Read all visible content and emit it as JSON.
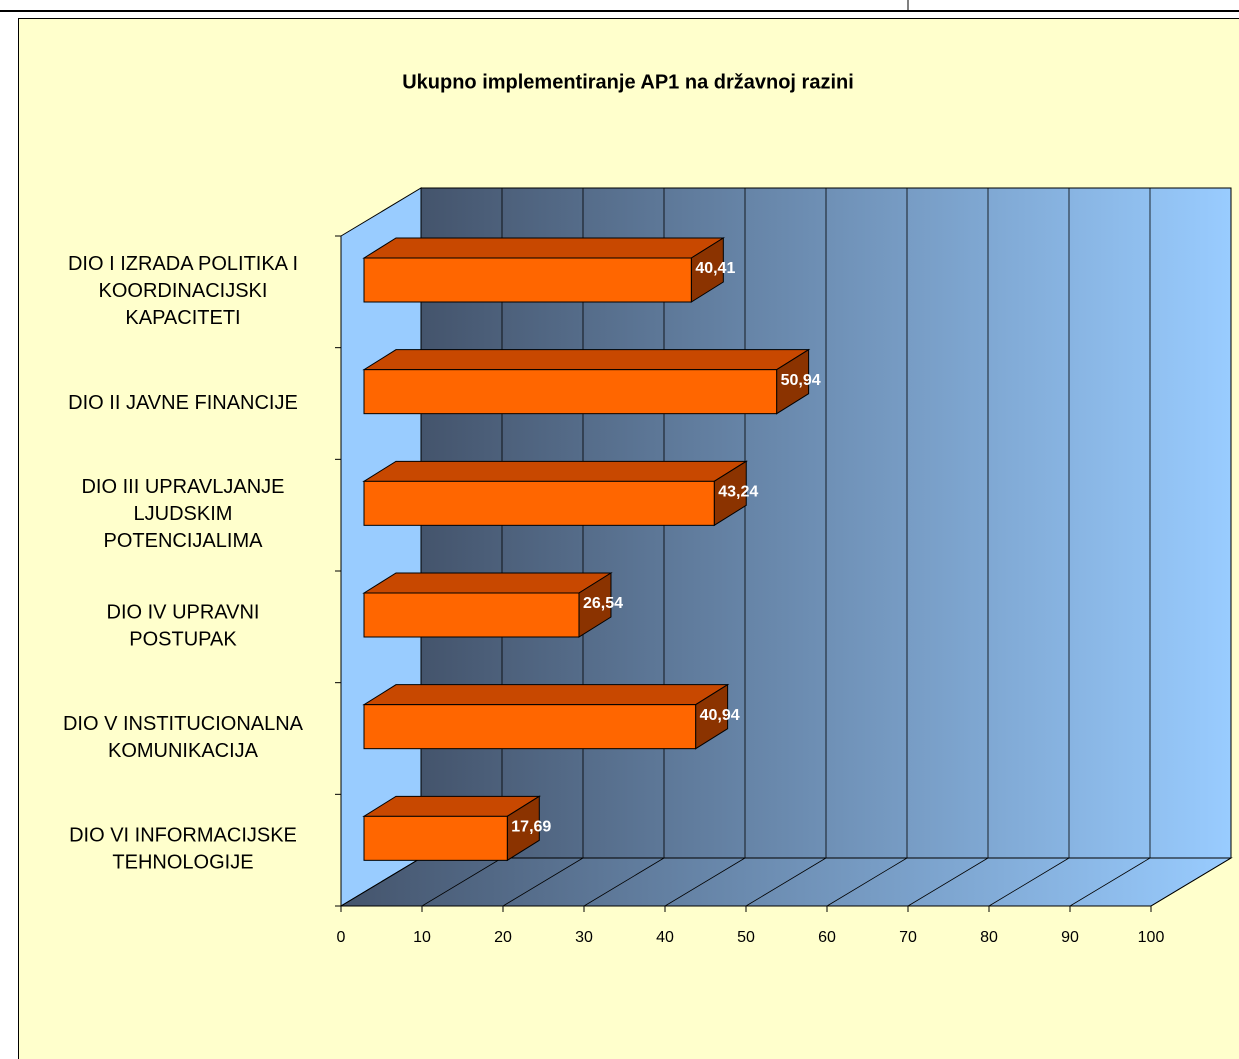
{
  "chart_data": {
    "type": "bar",
    "orientation": "horizontal",
    "title": "Ukupno implementiranje AP1 na državnoj razini",
    "categories": [
      "DIO I IZRADA POLITIKA I\nKOORDINACIJSKI\nKAPACITETI",
      "DIO II JAVNE FINANCIJE",
      "DIO III UPRAVLJANJE\nLJUDSKIM\nPOTENCIJALIMA",
      "DIO IV UPRAVNI\nPOSTUPAK",
      "DIO V INSTITUCIONALNA\nKOMUNIKACIJA",
      "DIO VI INFORMACIJSKE\nTEHNOLOGIJE"
    ],
    "values": [
      40.41,
      50.94,
      43.24,
      26.54,
      40.94,
      17.69
    ],
    "value_labels": [
      "40,41",
      "50,94",
      "43,24",
      "26,54",
      "40,94",
      "17,69"
    ],
    "color": "#FF6600",
    "xlim": [
      0,
      100
    ],
    "xticks": [
      0,
      10,
      20,
      30,
      40,
      50,
      60,
      70,
      80,
      90,
      100
    ],
    "grid": true
  }
}
